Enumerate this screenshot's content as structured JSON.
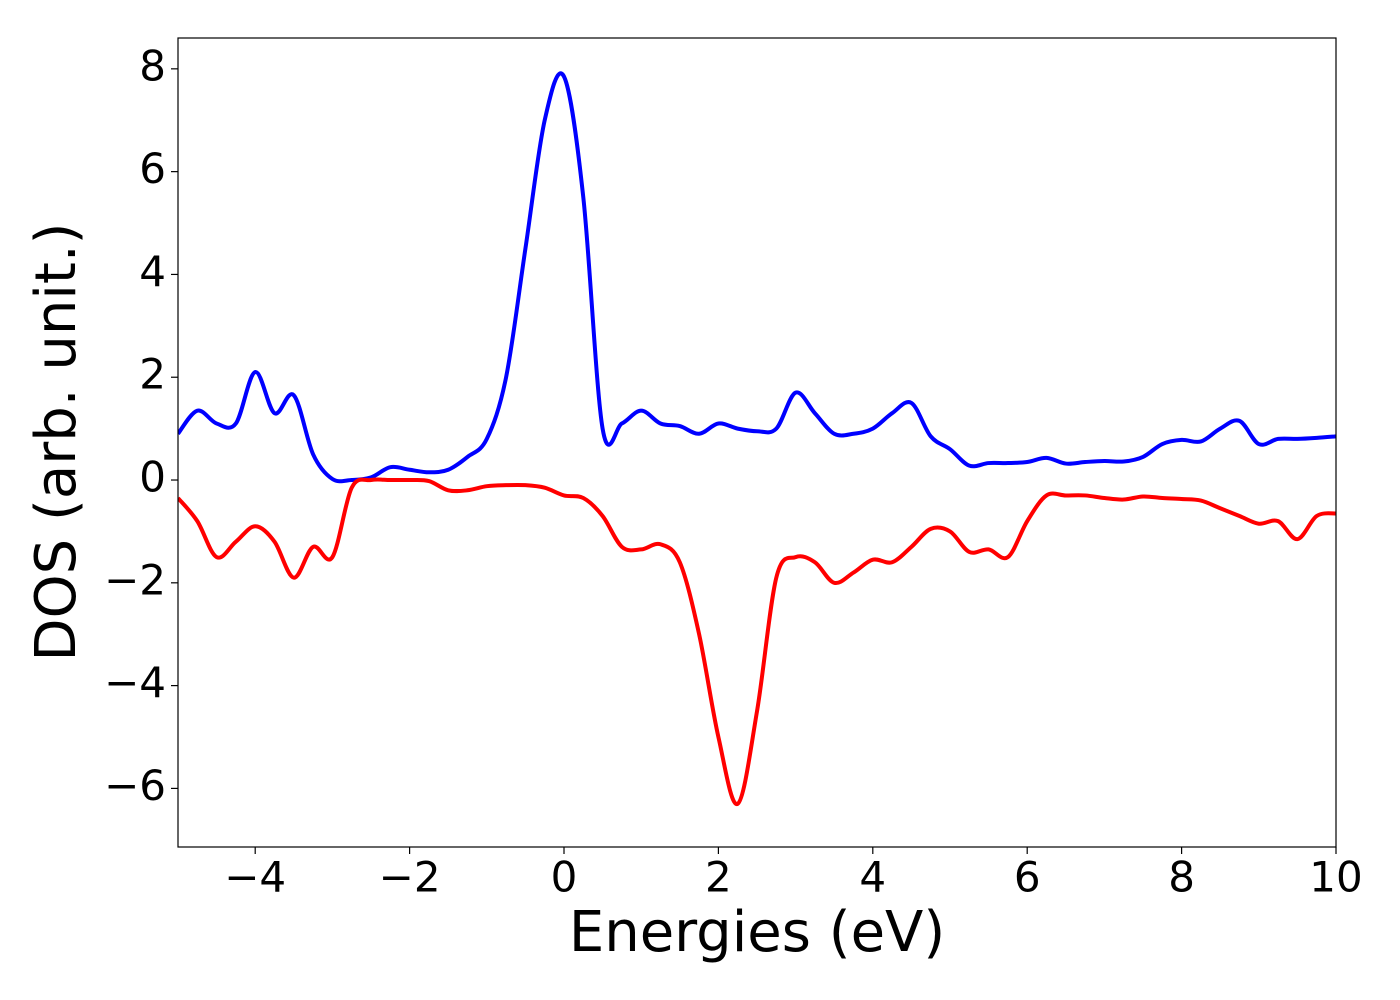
{
  "chart_data": {
    "type": "line",
    "x_label": "Energies (eV)",
    "y_label": "DOS (arb. unit.)",
    "x": [
      -5,
      -4.75,
      -4.5,
      -4.25,
      -4,
      -3.75,
      -3.5,
      -3.25,
      -3,
      -2.75,
      -2.5,
      -2.25,
      -2,
      -1.75,
      -1.5,
      -1.25,
      -1,
      -0.75,
      -0.5,
      -0.25,
      0,
      0.25,
      0.5,
      0.75,
      1,
      1.25,
      1.5,
      1.75,
      2,
      2.25,
      2.5,
      2.75,
      3,
      3.25,
      3.5,
      3.75,
      4,
      4.25,
      4.5,
      4.75,
      5,
      5.25,
      5.5,
      5.75,
      6,
      6.25,
      6.5,
      6.75,
      7,
      7.25,
      7.5,
      7.75,
      8,
      8.25,
      8.5,
      8.75,
      9,
      9.25,
      9.5,
      9.75,
      10
    ],
    "series": [
      {
        "color": "#0000ff",
        "values": [
          0.9,
          1.35,
          1.1,
          1.1,
          2.1,
          1.3,
          1.65,
          0.5,
          0.02,
          0.0,
          0.05,
          0.25,
          0.2,
          0.15,
          0.2,
          0.45,
          0.8,
          2.0,
          4.5,
          7.0,
          7.85,
          5.5,
          1.0,
          1.1,
          1.35,
          1.1,
          1.05,
          0.9,
          1.1,
          1.0,
          0.95,
          1.0,
          1.7,
          1.3,
          0.9,
          0.9,
          1.0,
          1.3,
          1.5,
          0.85,
          0.6,
          0.28,
          0.33,
          0.33,
          0.35,
          0.43,
          0.32,
          0.35,
          0.37,
          0.36,
          0.45,
          0.7,
          0.78,
          0.75,
          1.0,
          1.15,
          0.7,
          0.8,
          0.8,
          0.82,
          0.85
        ]
      },
      {
        "color": "#ff0000",
        "values": [
          -0.35,
          -0.8,
          -1.5,
          -1.2,
          -0.9,
          -1.2,
          -1.9,
          -1.3,
          -1.5,
          -0.15,
          0.0,
          0.0,
          0.0,
          -0.02,
          -0.2,
          -0.2,
          -0.12,
          -0.1,
          -0.1,
          -0.15,
          -0.3,
          -0.35,
          -0.7,
          -1.3,
          -1.35,
          -1.25,
          -1.6,
          -3.0,
          -5.0,
          -6.3,
          -4.5,
          -1.9,
          -1.5,
          -1.6,
          -2.0,
          -1.8,
          -1.55,
          -1.6,
          -1.3,
          -0.95,
          -1.0,
          -1.4,
          -1.35,
          -1.5,
          -0.8,
          -0.3,
          -0.3,
          -0.3,
          -0.35,
          -0.38,
          -0.32,
          -0.35,
          -0.37,
          -0.4,
          -0.55,
          -0.7,
          -0.85,
          -0.8,
          -1.15,
          -0.7,
          -0.65
        ]
      }
    ],
    "xlim": [
      -5,
      10
    ],
    "xticks": [
      {
        "value": -4,
        "label": "−4"
      },
      {
        "value": -2,
        "label": "−2"
      },
      0,
      2,
      4,
      6,
      8,
      10
    ],
    "ylim": [
      -7.14,
      8.6
    ],
    "yticks": [
      {
        "value": -6,
        "label": "−6"
      },
      {
        "value": -4,
        "label": "−4"
      },
      {
        "value": -2,
        "label": "−2"
      },
      0,
      2,
      4,
      6,
      8
    ],
    "grid": false
  }
}
